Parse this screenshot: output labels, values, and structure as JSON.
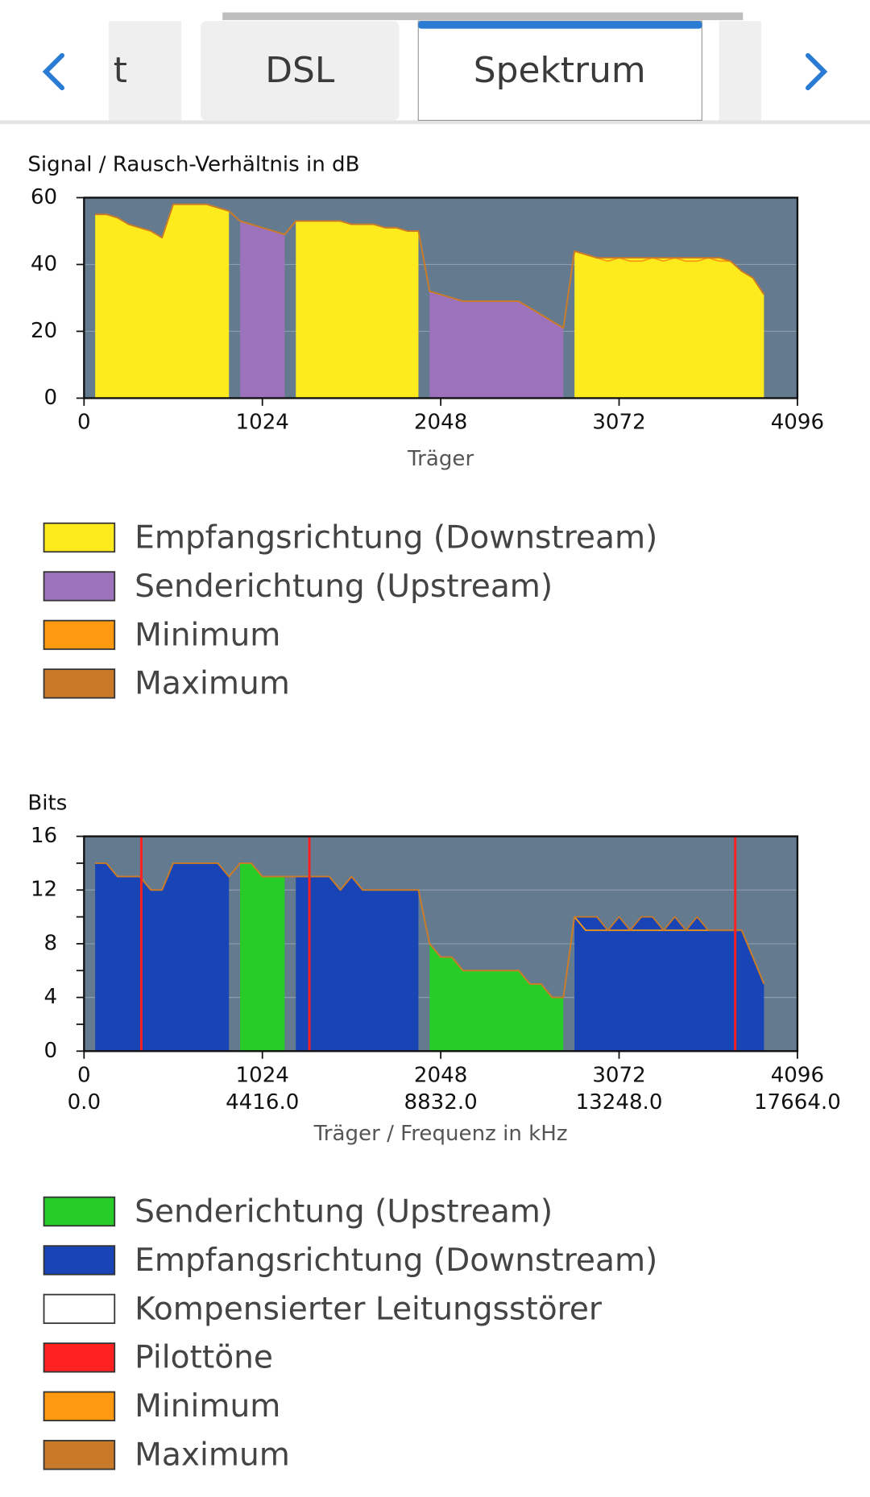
{
  "tabs": [
    "t",
    "DSL",
    "Spektrum"
  ],
  "chart_data": [
    {
      "type": "area",
      "ylabel": "Signal / Rausch-Verhältnis in dB",
      "xlabel": "Träger",
      "x": [
        0,
        64,
        128,
        192,
        256,
        320,
        384,
        448,
        512,
        576,
        640,
        704,
        768,
        832,
        896,
        960,
        1024,
        1088,
        1152,
        1216,
        1280,
        1344,
        1408,
        1472,
        1536,
        1600,
        1664,
        1728,
        1792,
        1856,
        1920,
        1984,
        2048,
        2112,
        2176,
        2240,
        2304,
        2368,
        2432,
        2496,
        2560,
        2624,
        2688,
        2752,
        2816,
        2880,
        2944,
        3008,
        3072,
        3136,
        3200,
        3264,
        3328,
        3392,
        3456,
        3520,
        3584,
        3648,
        3712,
        3776,
        3840,
        3904,
        3968,
        4032,
        4096
      ],
      "xlim": [
        0,
        4096
      ],
      "xticks": [
        0,
        1024,
        2048,
        3072,
        4096
      ],
      "ylim": [
        0,
        60
      ],
      "yticks": [
        0,
        20,
        40,
        60
      ],
      "grid": true,
      "series": [
        {
          "name": "Empfangsrichtung (Downstream)",
          "color": "#fdeb1e",
          "style": "area",
          "values": [
            null,
            55,
            55,
            54,
            52,
            51,
            50,
            48,
            58,
            58,
            58,
            58,
            57,
            56,
            null,
            null,
            null,
            null,
            null,
            53,
            53,
            53,
            53,
            53,
            52,
            52,
            52,
            51,
            51,
            50,
            50,
            null,
            null,
            null,
            null,
            null,
            null,
            null,
            null,
            null,
            null,
            null,
            null,
            null,
            44,
            43,
            42,
            42,
            42,
            42,
            42,
            42,
            42,
            42,
            42,
            42,
            42,
            42,
            41,
            38,
            36,
            31,
            null,
            null,
            null
          ]
        },
        {
          "name": "Senderichtung (Upstream)",
          "color": "#9c72bc",
          "style": "area",
          "values": [
            null,
            null,
            null,
            null,
            null,
            null,
            null,
            null,
            null,
            null,
            null,
            null,
            null,
            null,
            53,
            52,
            51,
            50,
            49,
            null,
            null,
            null,
            null,
            null,
            null,
            null,
            null,
            null,
            null,
            null,
            null,
            32,
            31,
            30,
            29,
            29,
            29,
            29,
            29,
            29,
            27,
            25,
            23,
            21,
            null,
            null,
            null,
            null,
            null,
            null,
            null,
            null,
            null,
            null,
            null,
            null,
            null,
            null,
            null,
            null,
            null,
            null,
            null,
            null,
            null
          ]
        },
        {
          "name": "Minimum",
          "color": "#ff9a10",
          "style": "line",
          "values": [
            null,
            55,
            55,
            54,
            52,
            51,
            50,
            48,
            58,
            58,
            58,
            58,
            57,
            56,
            53,
            52,
            51,
            50,
            49,
            53,
            53,
            53,
            53,
            53,
            52,
            52,
            52,
            51,
            51,
            50,
            50,
            32,
            31,
            30,
            29,
            29,
            29,
            29,
            29,
            29,
            27,
            25,
            23,
            21,
            44,
            43,
            42,
            41,
            42,
            41,
            41,
            42,
            41,
            42,
            41,
            41,
            42,
            41,
            41,
            38,
            36,
            31,
            null,
            null,
            null
          ]
        },
        {
          "name": "Maximum",
          "color": "#c87a28",
          "style": "line",
          "values": [
            null,
            55,
            55,
            54,
            52,
            51,
            50,
            48,
            58,
            58,
            58,
            58,
            57,
            56,
            53,
            52,
            51,
            50,
            49,
            53,
            53,
            53,
            53,
            53,
            52,
            52,
            52,
            51,
            51,
            50,
            50,
            32,
            31,
            30,
            29,
            29,
            29,
            29,
            29,
            29,
            27,
            25,
            23,
            21,
            44,
            43,
            42,
            42,
            42,
            42,
            42,
            42,
            42,
            42,
            42,
            42,
            42,
            42,
            41,
            38,
            36,
            31,
            null,
            null,
            null
          ]
        }
      ]
    },
    {
      "type": "area",
      "ylabel": "Bits",
      "xlabel": "Träger / Frequenz in kHz",
      "x": [
        0,
        64,
        128,
        192,
        256,
        320,
        384,
        448,
        512,
        576,
        640,
        704,
        768,
        832,
        896,
        960,
        1024,
        1088,
        1152,
        1216,
        1280,
        1344,
        1408,
        1472,
        1536,
        1600,
        1664,
        1728,
        1792,
        1856,
        1920,
        1984,
        2048,
        2112,
        2176,
        2240,
        2304,
        2368,
        2432,
        2496,
        2560,
        2624,
        2688,
        2752,
        2816,
        2880,
        2944,
        3008,
        3072,
        3136,
        3200,
        3264,
        3328,
        3392,
        3456,
        3520,
        3584,
        3648,
        3712,
        3776,
        3840,
        3904,
        3968,
        4032,
        4096
      ],
      "xlim": [
        0,
        4096
      ],
      "xticks": [
        0,
        1024,
        2048,
        3072,
        4096
      ],
      "x2lim": [
        0,
        17664
      ],
      "x2ticks": [
        {
          "value": 0,
          "label": "0.0"
        },
        {
          "value": 4416,
          "label": "4416.0"
        },
        {
          "value": 8832,
          "label": "8832.0"
        },
        {
          "value": 13248,
          "label": "13248.0"
        },
        {
          "value": 17664,
          "label": "17664.0"
        }
      ],
      "ylim": [
        0,
        16
      ],
      "yticks": [
        0,
        4,
        8,
        12,
        16
      ],
      "yminorticks": [
        2,
        6,
        10,
        14
      ],
      "grid": true,
      "series": [
        {
          "name": "Senderichtung (Upstream)",
          "color": "#28cc28",
          "style": "area",
          "values": [
            null,
            null,
            null,
            null,
            null,
            null,
            null,
            null,
            null,
            null,
            null,
            null,
            null,
            null,
            14,
            14,
            13,
            13,
            13,
            null,
            null,
            null,
            null,
            null,
            null,
            null,
            null,
            null,
            null,
            null,
            null,
            8,
            7,
            7,
            6,
            6,
            6,
            6,
            6,
            6,
            5,
            5,
            4,
            4,
            null,
            null,
            null,
            null,
            null,
            null,
            null,
            null,
            null,
            null,
            null,
            null,
            null,
            null,
            null,
            null,
            null,
            null,
            null,
            null,
            null
          ]
        },
        {
          "name": "Empfangsrichtung (Downstream)",
          "color": "#1844b6",
          "style": "area",
          "values": [
            null,
            14,
            14,
            13,
            13,
            13,
            12,
            12,
            14,
            14,
            14,
            14,
            14,
            13,
            null,
            null,
            null,
            null,
            null,
            13,
            13,
            13,
            13,
            12,
            13,
            12,
            12,
            12,
            12,
            12,
            12,
            null,
            null,
            null,
            null,
            null,
            null,
            null,
            null,
            null,
            null,
            null,
            null,
            null,
            10,
            10,
            10,
            9,
            10,
            9,
            10,
            10,
            9,
            10,
            9,
            10,
            9,
            9,
            9,
            9,
            7,
            5,
            null,
            null,
            null
          ]
        },
        {
          "name": "Kompensierter Leitungsstörer",
          "color": "#ffffff",
          "style": "none"
        },
        {
          "name": "Pilottöne",
          "color": "#ff2020",
          "style": "vlines",
          "x": [
            329,
            1294,
            3739
          ]
        },
        {
          "name": "Minimum",
          "color": "#ff9a10",
          "style": "line",
          "values": [
            null,
            14,
            14,
            13,
            13,
            13,
            12,
            12,
            14,
            14,
            14,
            14,
            14,
            13,
            14,
            14,
            13,
            13,
            13,
            13,
            13,
            13,
            13,
            12,
            13,
            12,
            12,
            12,
            12,
            12,
            12,
            8,
            7,
            7,
            6,
            6,
            6,
            6,
            6,
            6,
            5,
            5,
            4,
            4,
            10,
            9,
            9,
            9,
            9,
            9,
            9,
            9,
            9,
            9,
            9,
            9,
            9,
            9,
            9,
            9,
            7,
            5,
            null,
            null,
            null
          ]
        },
        {
          "name": "Maximum",
          "color": "#c87a28",
          "style": "line",
          "values": [
            null,
            14,
            14,
            13,
            13,
            13,
            12,
            12,
            14,
            14,
            14,
            14,
            14,
            13,
            14,
            14,
            13,
            13,
            13,
            13,
            13,
            13,
            13,
            12,
            13,
            12,
            12,
            12,
            12,
            12,
            12,
            8,
            7,
            7,
            6,
            6,
            6,
            6,
            6,
            6,
            5,
            5,
            4,
            4,
            10,
            10,
            10,
            9,
            10,
            9,
            10,
            10,
            9,
            10,
            9,
            10,
            9,
            9,
            9,
            9,
            7,
            5,
            null,
            null,
            null
          ]
        }
      ]
    }
  ]
}
